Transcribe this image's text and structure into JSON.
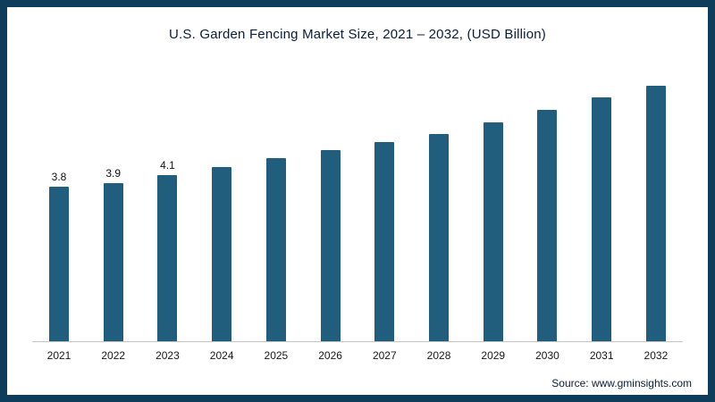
{
  "chart_data": {
    "type": "bar",
    "title": "U.S. Garden Fencing Market Size, 2021 – 2032, (USD Billion)",
    "categories": [
      "2021",
      "2022",
      "2023",
      "2024",
      "2025",
      "2026",
      "2027",
      "2028",
      "2029",
      "2030",
      "2031",
      "2032"
    ],
    "values": [
      3.8,
      3.9,
      4.1,
      4.3,
      4.5,
      4.7,
      4.9,
      5.1,
      5.4,
      5.7,
      6.0,
      6.3
    ],
    "data_labels": [
      "3.8",
      "3.9",
      "4.1",
      "",
      "",
      "",
      "",
      "",
      "",
      "",
      "",
      ""
    ],
    "xlabel": "",
    "ylabel": "",
    "ylim": [
      0,
      6.6
    ],
    "grid": false,
    "legend": false,
    "bar_color": "#215e7e",
    "axis_line_color": "#c6c6c6",
    "frame_border_color": "#0e3d5c"
  },
  "source": {
    "label": "Source: www.gminsights.com"
  }
}
